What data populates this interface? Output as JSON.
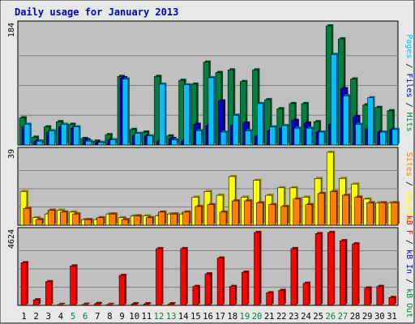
{
  "chart_data": {
    "type": "bar",
    "title": "Daily usage for January 2013",
    "categories": [
      "1",
      "2",
      "3",
      "4",
      "5",
      "6",
      "7",
      "8",
      "9",
      "10",
      "11",
      "12",
      "13",
      "14",
      "15",
      "16",
      "17",
      "18",
      "19",
      "20",
      "21",
      "22",
      "23",
      "24",
      "25",
      "26",
      "27",
      "28",
      "29",
      "30",
      "31"
    ],
    "weekend_days": [
      5,
      6,
      12,
      13,
      19,
      20,
      26,
      27
    ],
    "colors": {
      "hits": "#008040",
      "files": "#0000c0",
      "pages": "#00c0ff",
      "visits": "#ffff00",
      "sites": "#ff8000",
      "kbytes": "#ff0000",
      "title": "#0000c0",
      "weekend": "#008040",
      "panel": "#c0c0c0",
      "background": "#e8e8e8"
    },
    "panels": [
      {
        "id": "hits-files-pages",
        "max_label": "184",
        "ymax": 184,
        "series": [
          {
            "name": "Hits",
            "key": "hits",
            "values": [
              42,
              12,
              28,
              36,
              32,
              10,
              6,
              16,
              106,
              24,
              20,
              106,
              14,
              100,
              94,
              128,
              112,
              116,
              98,
              116,
              70,
              56,
              64,
              64,
              36,
              184,
              164,
              102,
              62,
              58,
              53
            ]
          },
          {
            "name": "Files",
            "key": "files",
            "values": [
              28,
              6,
              20,
              28,
              26,
              8,
              4,
              8,
              104,
              14,
              14,
              6,
              10,
              6,
              32,
              30,
              68,
              30,
              34,
              14,
              22,
              26,
              38,
              34,
              20,
              32,
              87,
              44,
              25,
              20,
              24
            ]
          },
          {
            "name": "Pages",
            "key": "pages",
            "values": [
              32,
              6,
              22,
              32,
              28,
              6,
              4,
              8,
              102,
              18,
              14,
              94,
              8,
              93,
              22,
              104,
              20,
              46,
              22,
              64,
              28,
              30,
              26,
              26,
              20,
              140,
              76,
              32,
              73,
              20,
              24
            ]
          }
        ]
      },
      {
        "id": "visits-sites",
        "max_label": "39",
        "ymax": 39,
        "series": [
          {
            "name": "Visits",
            "key": "visits",
            "values": [
              18,
              4,
              6,
              8,
              7,
              3,
              3,
              6,
              4,
              5,
              5,
              5,
              6,
              6,
              15,
              18,
              16,
              26,
              15,
              24,
              16,
              20,
              20,
              15,
              25,
              39,
              25,
              22,
              14,
              12,
              12
            ]
          },
          {
            "name": "Sites",
            "key": "sites",
            "values": [
              9,
              3,
              8,
              7,
              6,
              3,
              4,
              6,
              3,
              5,
              4,
              7,
              6,
              7,
              10,
              11,
              7,
              13,
              13,
              12,
              11,
              10,
              14,
              11,
              17,
              18,
              16,
              15,
              12,
              12,
              12
            ]
          }
        ]
      },
      {
        "id": "kbytes",
        "max_label": "4624",
        "ymax": 4624,
        "series": [
          {
            "name": "KBytes",
            "key": "kbytes",
            "values": [
              2700,
              350,
              1500,
              60,
              2500,
              70,
              120,
              60,
              1900,
              100,
              100,
              3600,
              100,
              3600,
              1200,
              2000,
              3000,
              1200,
              2100,
              4624,
              800,
              950,
              3600,
              1400,
              4550,
              4624,
              4100,
              3900,
              1100,
              1200,
              500
            ]
          }
        ]
      }
    ],
    "right_labels": [
      [
        {
          "text": "Pages",
          "key": "pages"
        },
        {
          "text": " / ",
          "key": "sep"
        },
        {
          "text": "Files",
          "key": "files"
        },
        {
          "text": " / ",
          "key": "sep"
        },
        {
          "text": "Hits",
          "key": "hits"
        }
      ],
      [
        {
          "text": "Sites",
          "key": "sites"
        },
        {
          "text": " / ",
          "key": "sep"
        },
        {
          "text": "Visits",
          "key": "visits"
        }
      ],
      [
        {
          "text": "kB F",
          "key": "kbytes"
        },
        {
          "text": " / ",
          "key": "sep"
        },
        {
          "text": "kB In",
          "key": "files"
        },
        {
          "text": " / ",
          "key": "sep"
        },
        {
          "text": "kB Out",
          "key": "hits"
        }
      ]
    ]
  }
}
